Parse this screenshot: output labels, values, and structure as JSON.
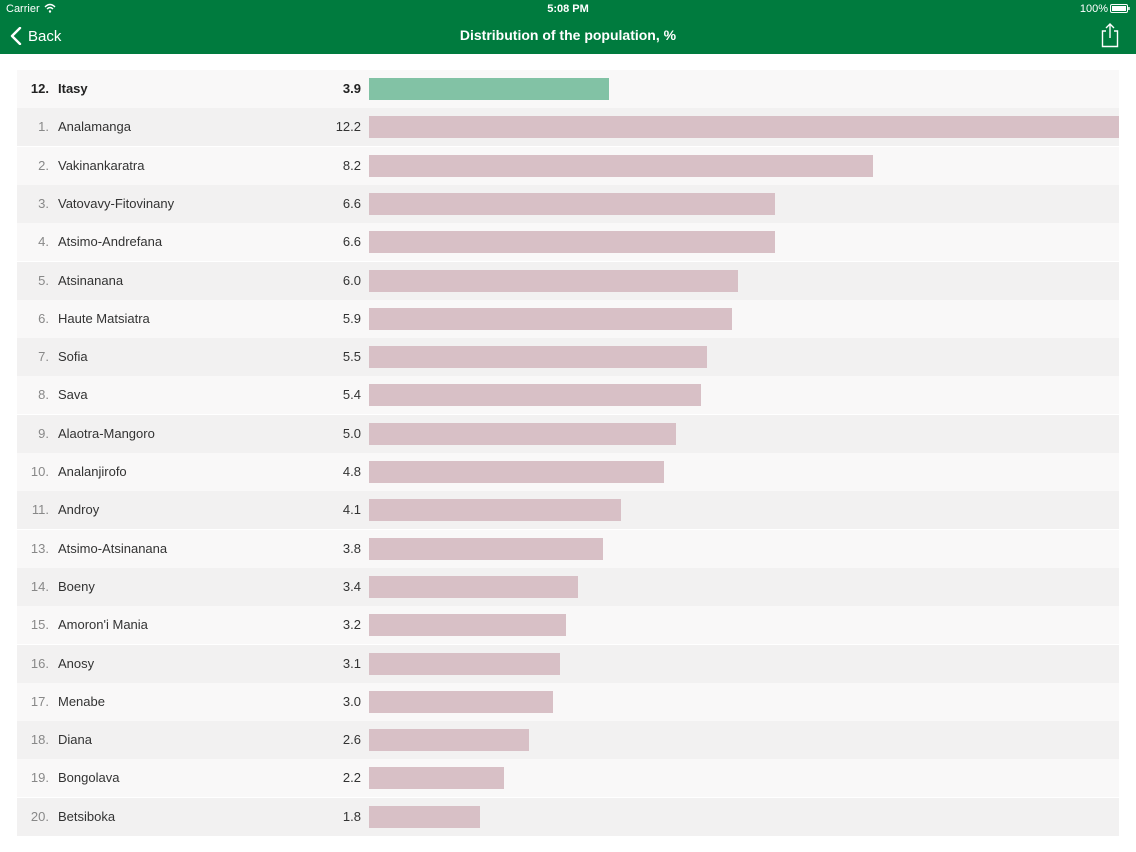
{
  "status_bar": {
    "carrier": "Carrier",
    "time": "5:08 PM",
    "battery": "100%"
  },
  "nav": {
    "back_label": "Back",
    "title": "Distribution of the population, %"
  },
  "colors": {
    "header": "#007b3e",
    "highlight_bar": "#82c2a5",
    "bar": "#d8c0c6"
  },
  "icons": [
    "wifi-icon",
    "battery-icon",
    "chevron-left-icon",
    "share-icon"
  ],
  "chart_data": {
    "type": "bar",
    "orientation": "horizontal",
    "title": "",
    "xlabel": "",
    "ylabel": "",
    "xlim": [
      0,
      12.2
    ],
    "grid": false,
    "highlighted_index": 0,
    "rows": [
      {
        "rank": "12.",
        "name": "Itasy",
        "value": "3.9",
        "v": 3.9
      },
      {
        "rank": "1.",
        "name": "Analamanga",
        "value": "12.2",
        "v": 12.2
      },
      {
        "rank": "2.",
        "name": "Vakinankaratra",
        "value": "8.2",
        "v": 8.2
      },
      {
        "rank": "3.",
        "name": "Vatovavy-Fitovinany",
        "value": "6.6",
        "v": 6.6
      },
      {
        "rank": "4.",
        "name": "Atsimo-Andrefana",
        "value": "6.6",
        "v": 6.6
      },
      {
        "rank": "5.",
        "name": "Atsinanana",
        "value": "6.0",
        "v": 6.0
      },
      {
        "rank": "6.",
        "name": "Haute Matsiatra",
        "value": "5.9",
        "v": 5.9
      },
      {
        "rank": "7.",
        "name": "Sofia",
        "value": "5.5",
        "v": 5.5
      },
      {
        "rank": "8.",
        "name": "Sava",
        "value": "5.4",
        "v": 5.4
      },
      {
        "rank": "9.",
        "name": "Alaotra-Mangoro",
        "value": "5.0",
        "v": 5.0
      },
      {
        "rank": "10.",
        "name": "Analanjirofo",
        "value": "4.8",
        "v": 4.8
      },
      {
        "rank": "11.",
        "name": "Androy",
        "value": "4.1",
        "v": 4.1
      },
      {
        "rank": "13.",
        "name": "Atsimo-Atsinanana",
        "value": "3.8",
        "v": 3.8
      },
      {
        "rank": "14.",
        "name": "Boeny",
        "value": "3.4",
        "v": 3.4
      },
      {
        "rank": "15.",
        "name": "Amoron'i Mania",
        "value": "3.2",
        "v": 3.2
      },
      {
        "rank": "16.",
        "name": "Anosy",
        "value": "3.1",
        "v": 3.1
      },
      {
        "rank": "17.",
        "name": "Menabe",
        "value": "3.0",
        "v": 3.0
      },
      {
        "rank": "18.",
        "name": "Diana",
        "value": "2.6",
        "v": 2.6
      },
      {
        "rank": "19.",
        "name": "Bongolava",
        "value": "2.2",
        "v": 2.2
      },
      {
        "rank": "20.",
        "name": "Betsiboka",
        "value": "1.8",
        "v": 1.8
      }
    ]
  }
}
